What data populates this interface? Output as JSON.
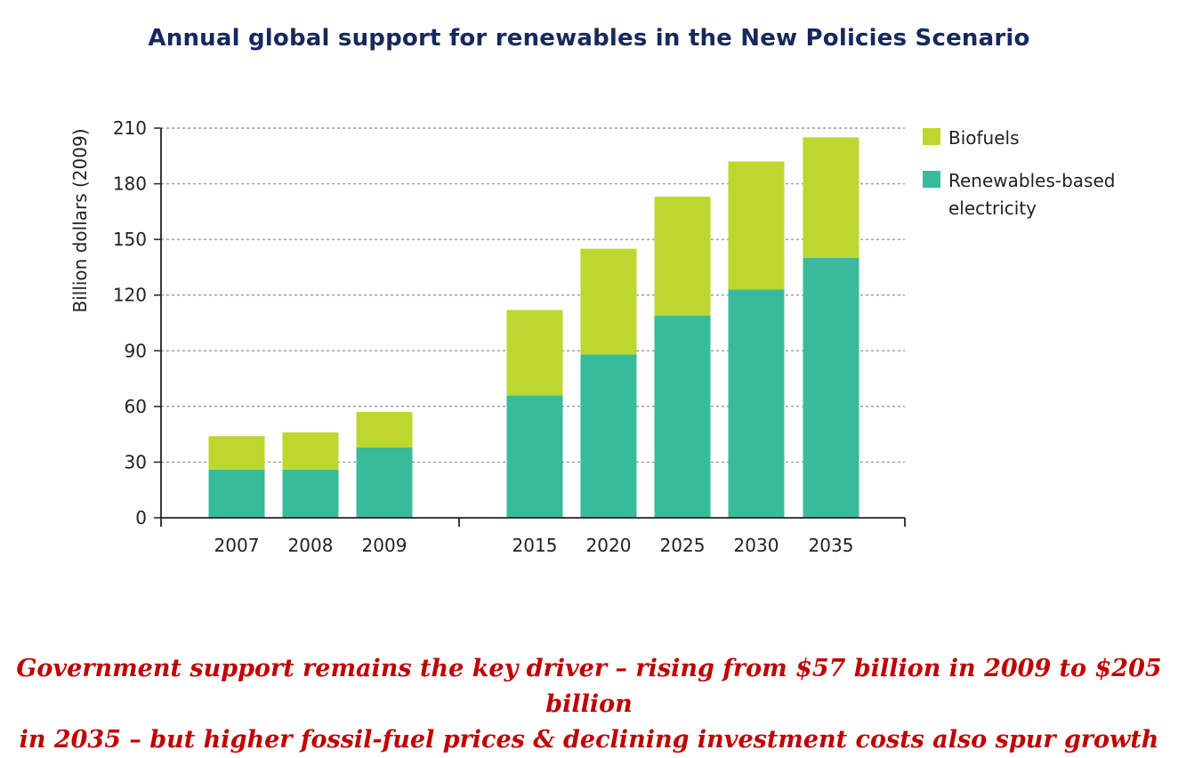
{
  "title": "Annual global support for renewables in the New Policies Scenario",
  "caption": {
    "line1": "Government support remains the key driver – rising from $57 billion in 2009 to $205 billion",
    "line2": "in 2035 – but higher fossil-fuel prices & declining investment costs also spur growth"
  },
  "colors": {
    "title": "#16295e",
    "biofuels": "#bdd72e",
    "renewables_electricity": "#38bb9a",
    "caption": "#c00000",
    "grid": "#9a9a9a",
    "axis": "#222222"
  },
  "chart_data": {
    "type": "bar",
    "stacked": true,
    "title": "Annual global support for renewables in the New Policies Scenario",
    "xlabel": "",
    "ylabel": "Billion dollars (2009)",
    "ylim": [
      0,
      210
    ],
    "yticks": [
      0,
      30,
      60,
      90,
      120,
      150,
      180,
      210
    ],
    "grid": true,
    "legend_position": "top-right",
    "categories": [
      "2007",
      "2008",
      "2009",
      "2015",
      "2020",
      "2025",
      "2030",
      "2035"
    ],
    "groups": [
      [
        "2007",
        "2008",
        "2009"
      ],
      [
        "2015",
        "2020",
        "2025",
        "2030",
        "2035"
      ]
    ],
    "series": [
      {
        "name": "Renewables-based electricity",
        "legend_lines": [
          "Renewables-based",
          "electricity"
        ],
        "color": "#38bb9a",
        "values": [
          26,
          26,
          38,
          66,
          88,
          109,
          123,
          140
        ]
      },
      {
        "name": "Biofuels",
        "legend_lines": [
          "Biofuels"
        ],
        "color": "#bdd72e",
        "values": [
          18,
          20,
          19,
          46,
          57,
          64,
          69,
          65
        ]
      }
    ],
    "totals": [
      44,
      46,
      57,
      112,
      145,
      173,
      192,
      205
    ]
  }
}
